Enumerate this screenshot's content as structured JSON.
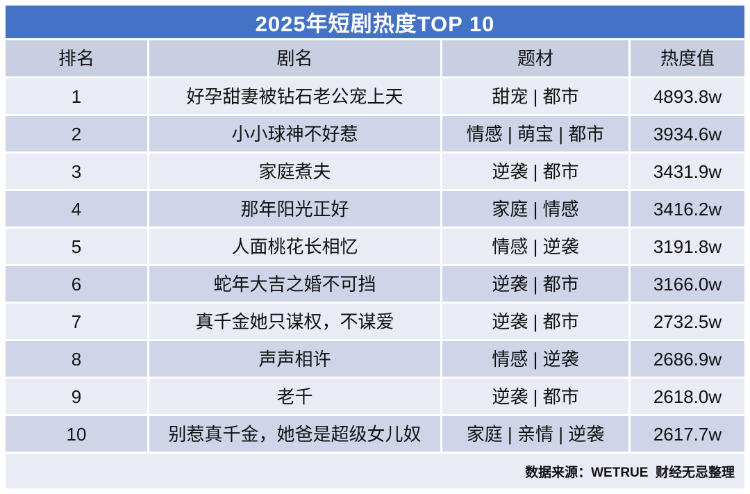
{
  "title": "2025年短剧热度TOP 10",
  "columns": [
    "排名",
    "剧名",
    "题材",
    "热度值"
  ],
  "rows": [
    {
      "rank": "1",
      "name": "好孕甜妻被钻石老公宠上天",
      "genre": "甜宠 | 都市",
      "heat": "4893.8w"
    },
    {
      "rank": "2",
      "name": "小小球神不好惹",
      "genre": "情感 | 萌宝 | 都市",
      "heat": "3934.6w"
    },
    {
      "rank": "3",
      "name": "家庭煮夫",
      "genre": "逆袭 | 都市",
      "heat": "3431.9w"
    },
    {
      "rank": "4",
      "name": "那年阳光正好",
      "genre": "家庭 | 情感",
      "heat": "3416.2w"
    },
    {
      "rank": "5",
      "name": "人面桃花长相忆",
      "genre": "情感 | 逆袭",
      "heat": "3191.8w"
    },
    {
      "rank": "6",
      "name": "蛇年大吉之婚不可挡",
      "genre": "逆袭 | 都市",
      "heat": "3166.0w"
    },
    {
      "rank": "7",
      "name": "真千金她只谋权，不谋爱",
      "genre": "逆袭 | 都市",
      "heat": "2732.5w"
    },
    {
      "rank": "8",
      "name": "声声相许",
      "genre": "情感 | 逆袭",
      "heat": "2686.9w"
    },
    {
      "rank": "9",
      "name": "老千",
      "genre": "逆袭 | 都市",
      "heat": "2618.0w"
    },
    {
      "rank": "10",
      "name": "别惹真千金，她爸是超级女儿奴",
      "genre": "家庭 | 亲情 | 逆袭",
      "heat": "2617.7w"
    }
  ],
  "footer": "数据来源：WETRUE  财经无忌整理",
  "colors": {
    "title_bg": "#4472c4",
    "title_text": "#ffffff",
    "header_bg": "#c9cfe2",
    "row_odd_bg": "#e9ebf5",
    "row_even_bg": "#cfd5e9",
    "footer_bg": "#e9ebf5",
    "text": "#111111",
    "gap": "#ffffff"
  },
  "chart_data": {
    "type": "table",
    "title": "2025年短剧热度TOP 10",
    "columns": [
      "排名",
      "剧名",
      "题材",
      "热度值"
    ],
    "rows": [
      [
        1,
        "好孕甜妻被钻石老公宠上天",
        "甜宠 | 都市",
        "4893.8w"
      ],
      [
        2,
        "小小球神不好惹",
        "情感 | 萌宝 | 都市",
        "3934.6w"
      ],
      [
        3,
        "家庭煮夫",
        "逆袭 | 都市",
        "3431.9w"
      ],
      [
        4,
        "那年阳光正好",
        "家庭 | 情感",
        "3416.2w"
      ],
      [
        5,
        "人面桃花长相忆",
        "情感 | 逆袭",
        "3191.8w"
      ],
      [
        6,
        "蛇年大吉之婚不可挡",
        "逆袭 | 都市",
        "3166.0w"
      ],
      [
        7,
        "真千金她只谋权，不谋爱",
        "逆袭 | 都市",
        "2732.5w"
      ],
      [
        8,
        "声声相许",
        "情感 | 逆袭",
        "2686.9w"
      ],
      [
        9,
        "老千",
        "逆袭 | 都市",
        "2618.0w"
      ],
      [
        10,
        "别惹真千金，她爸是超级女儿奴",
        "家庭 | 亲情 | 逆袭",
        "2617.7w"
      ]
    ],
    "heat_values_wan": [
      4893.8,
      3934.6,
      3431.9,
      3416.2,
      3191.8,
      3166.0,
      2732.5,
      2686.9,
      2618.0,
      2617.7
    ],
    "source_note": "数据来源：WETRUE  财经无忌整理"
  }
}
